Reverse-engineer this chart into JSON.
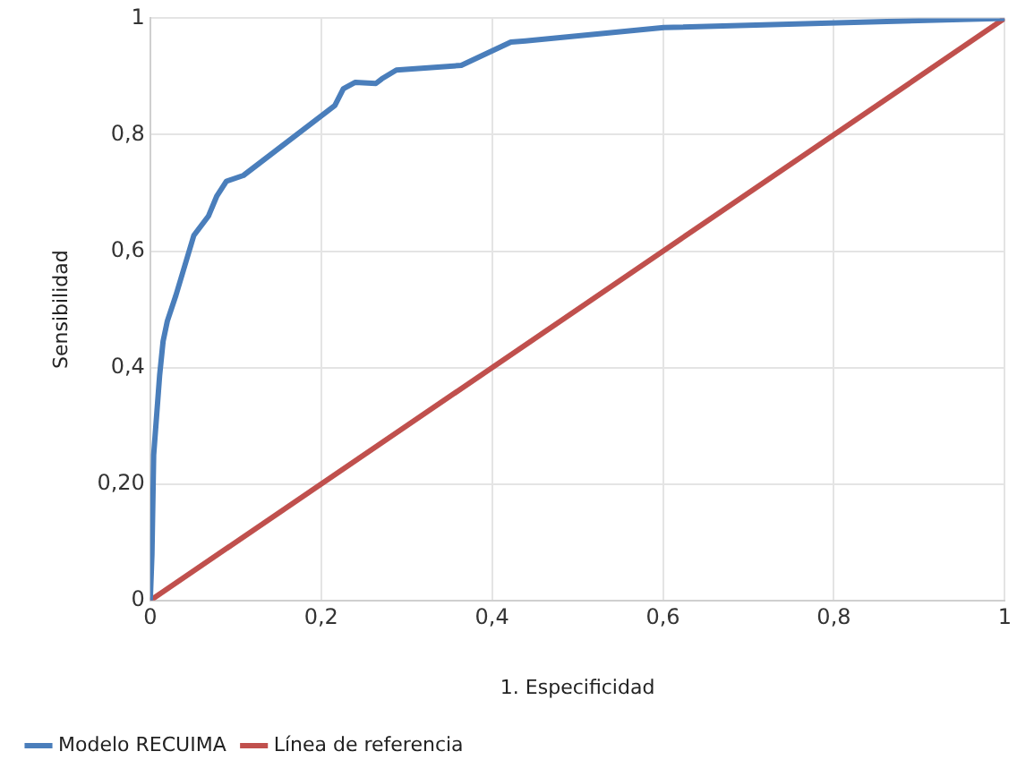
{
  "chart_data": {
    "type": "line",
    "xlabel": "1. Especificidad",
    "ylabel": "Sensibilidad",
    "xlim": [
      0,
      1
    ],
    "ylim": [
      0,
      1
    ],
    "xticks": [
      0,
      {
        "value": 0.2,
        "label": "0,2"
      },
      {
        "value": 0.4,
        "label": "0,4"
      },
      {
        "value": 0.6,
        "label": "0,6"
      },
      {
        "value": 0.8,
        "label": "0,8"
      },
      1
    ],
    "yticks": [
      0,
      {
        "value": 0.2,
        "label": "0,20"
      },
      {
        "value": 0.4,
        "label": "0,4"
      },
      {
        "value": 0.6,
        "label": "0,6"
      },
      {
        "value": 0.8,
        "label": "0,8"
      },
      1
    ],
    "grid": true,
    "legend": "bottom",
    "marker": "none",
    "line_style": "solid",
    "series": [
      {
        "name": "Modelo RECUIMA",
        "color": "#4a7ebb",
        "x": [
          0,
          0.002,
          0.004,
          0.011,
          0.015,
          0.02,
          0.03,
          0.051,
          0.068,
          0.078,
          0.089,
          0.109,
          0.216,
          0.226,
          0.24,
          0.264,
          0.271,
          0.288,
          0.364,
          0.422,
          0.439,
          0.601,
          1
        ],
        "values": [
          0,
          0.08,
          0.25,
          0.387,
          0.445,
          0.48,
          0.524,
          0.627,
          0.66,
          0.695,
          0.72,
          0.73,
          0.85,
          0.879,
          0.89,
          0.888,
          0.896,
          0.911,
          0.919,
          0.959,
          0.961,
          0.984,
          1
        ]
      },
      {
        "name": "Línea de referencia",
        "color": "#c0504d",
        "x": [
          0,
          1
        ],
        "values": [
          0,
          1
        ]
      }
    ]
  }
}
